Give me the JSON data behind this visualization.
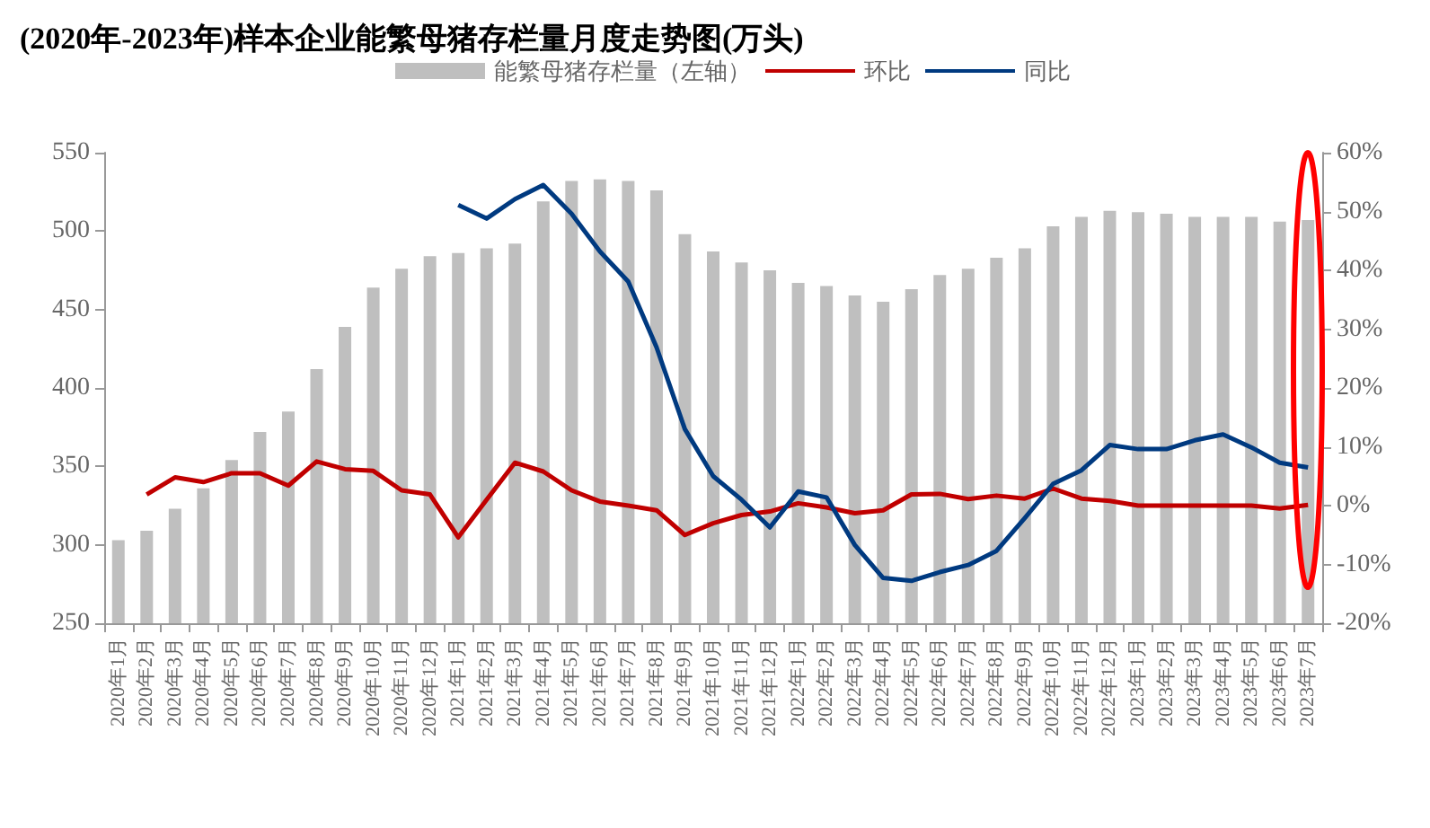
{
  "chart_data": {
    "type": "bar",
    "title": "(2020年-2023年)样本企业能繁母猪存栏量月度走势图(万头)",
    "categories": [
      "2020年1月",
      "2020年2月",
      "2020年3月",
      "2020年4月",
      "2020年5月",
      "2020年6月",
      "2020年7月",
      "2020年8月",
      "2020年9月",
      "2020年10月",
      "2020年11月",
      "2020年12月",
      "2021年1月",
      "2021年2月",
      "2021年3月",
      "2021年4月",
      "2021年5月",
      "2021年6月",
      "2021年7月",
      "2021年8月",
      "2021年9月",
      "2021年10月",
      "2021年11月",
      "2021年12月",
      "2022年1月",
      "2022年2月",
      "2022年3月",
      "2022年4月",
      "2022年5月",
      "2022年6月",
      "2022年7月",
      "2022年8月",
      "2022年9月",
      "2022年10月",
      "2022年11月",
      "2022年12月",
      "2023年1月",
      "2023年2月",
      "2023年3月",
      "2023年4月",
      "2023年5月",
      "2023年6月",
      "2023年7月"
    ],
    "series": [
      {
        "name": "能繁母猪存栏量（左轴）",
        "color": "#bfbfbf",
        "values": [
          303,
          309,
          323,
          336,
          354,
          372,
          385,
          412,
          439,
          464,
          476,
          484,
          486,
          489,
          492,
          519,
          532,
          533,
          532,
          526,
          498,
          487,
          480,
          475,
          467,
          465,
          459,
          455,
          463,
          472,
          476,
          483,
          489,
          503,
          509,
          513,
          512,
          511,
          509,
          509,
          509,
          506,
          507
        ]
      },
      {
        "name": "环比",
        "type": "line",
        "axis": "y2",
        "color": "#c00000",
        "values": [
          null,
          1.9,
          4.8,
          4.0,
          5.5,
          5.5,
          3.4,
          7.5,
          6.2,
          5.9,
          2.6,
          1.9,
          -5.4,
          1.0,
          7.3,
          5.8,
          2.6,
          0.7,
          0.0,
          -0.8,
          -5.0,
          -3.0,
          -1.6,
          -1.0,
          0.4,
          -0.3,
          -1.3,
          -0.8,
          1.9,
          2.0,
          1.1,
          1.7,
          1.2,
          2.9,
          1.2,
          0.8,
          0.0,
          0.0,
          0.0,
          0.0,
          0.0,
          -0.5,
          0.1
        ]
      },
      {
        "name": "同比",
        "type": "line",
        "axis": "y2",
        "color": "#003a80",
        "values": [
          null,
          null,
          null,
          null,
          null,
          null,
          null,
          null,
          null,
          null,
          null,
          null,
          51.1,
          48.8,
          52.1,
          54.5,
          49.6,
          43.2,
          38.1,
          26.9,
          13.0,
          5.0,
          1.0,
          -3.7,
          2.4,
          1.4,
          -6.7,
          -12.3,
          -12.8,
          -11.3,
          -10.1,
          -7.7,
          -2.1,
          3.7,
          6.0,
          10.3,
          9.6,
          9.6,
          11.1,
          12.1,
          9.9,
          7.3,
          6.5
        ]
      }
    ],
    "ylim": [
      250,
      550
    ],
    "yticks": [
      250,
      300,
      350,
      400,
      450,
      500,
      550
    ],
    "y2lim": [
      -20,
      60
    ],
    "y2ticks": [
      {
        "value": -20,
        "label": "-20%"
      },
      {
        "value": -10,
        "label": "-10%"
      },
      {
        "value": 0,
        "label": "0%"
      },
      {
        "value": 10,
        "label": "10%"
      },
      {
        "value": 20,
        "label": "20%"
      },
      {
        "value": 30,
        "label": "30%"
      },
      {
        "value": 40,
        "label": "40%"
      },
      {
        "value": 50,
        "label": "50%"
      },
      {
        "value": 60,
        "label": "60%"
      }
    ],
    "grid": false,
    "legend": "top",
    "marker": "none",
    "line_style": "solid"
  }
}
